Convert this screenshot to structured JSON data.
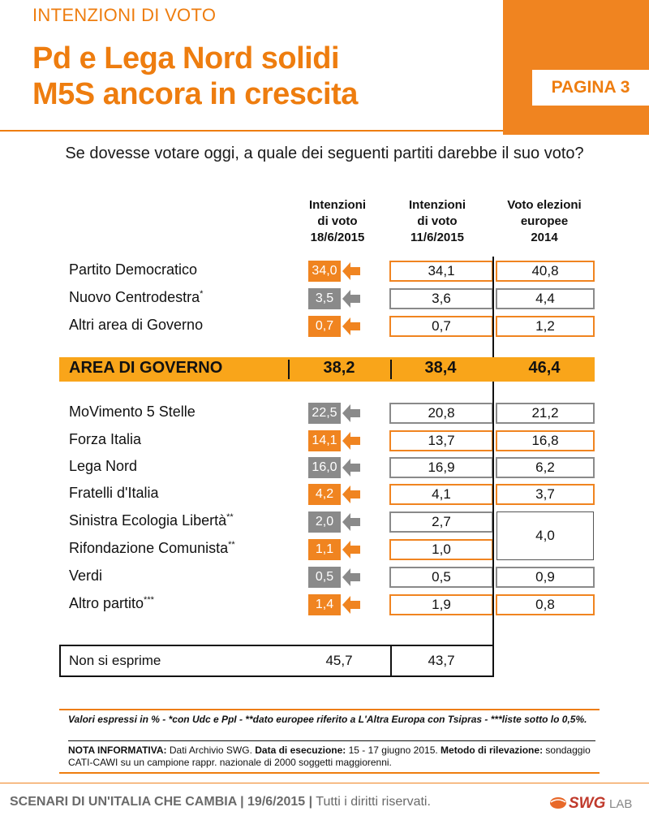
{
  "header": {
    "kicker": "INTENZIONI DI VOTO",
    "title_line1": "Pd e Lega Nord solidi",
    "title_line2": "M5S ancora in crescita",
    "page_label": "PAGINA 3",
    "accent_color": "#f08420"
  },
  "question": "Se dovesse votare oggi, a quale dei seguenti partiti darebbe il suo voto?",
  "columns": [
    {
      "line1": "Intenzioni",
      "line2": "di voto",
      "line3": "18/6/2015"
    },
    {
      "line1": "Intenzioni",
      "line2": "di voto",
      "line3": "11/6/2015"
    },
    {
      "line1": "Voto elezioni",
      "line2": "europee",
      "line3": "2014"
    }
  ],
  "rows": [
    {
      "name": "Partito Democratico",
      "mark": "",
      "current": "34,0",
      "previous": "34,1",
      "europee": "40,8",
      "color": "orange",
      "trend": "left-arrow-icon"
    },
    {
      "name": "Nuovo Centrodestra",
      "mark": "*",
      "current": "3,5",
      "previous": "3,6",
      "europee": "4,4",
      "color": "gray",
      "trend": "left-arrow-icon"
    },
    {
      "name": "Altri area di Governo",
      "mark": "",
      "current": "0,7",
      "previous": "0,7",
      "europee": "1,2",
      "color": "orange",
      "trend": "left-arrow-icon"
    },
    {
      "name": "MoVimento 5 Stelle",
      "mark": "",
      "current": "22,5",
      "previous": "20,8",
      "europee": "21,2",
      "color": "gray",
      "trend": "left-arrow-icon"
    },
    {
      "name": "Forza Italia",
      "mark": "",
      "current": "14,1",
      "previous": "13,7",
      "europee": "16,8",
      "color": "orange",
      "trend": "left-arrow-icon"
    },
    {
      "name": "Lega Nord",
      "mark": "",
      "current": "16,0",
      "previous": "16,9",
      "europee": "6,2",
      "color": "gray",
      "trend": "left-arrow-icon"
    },
    {
      "name": "Fratelli d'Italia",
      "mark": "",
      "current": "4,2",
      "previous": "4,1",
      "europee": "3,7",
      "color": "orange",
      "trend": "left-arrow-icon"
    },
    {
      "name": "Sinistra Ecologia Libertà",
      "mark": "**",
      "current": "2,0",
      "previous": "2,7",
      "europee": "4,0",
      "color": "gray",
      "trend": "left-arrow-icon"
    },
    {
      "name": "Rifondazione Comunista",
      "mark": "**",
      "current": "1,1",
      "previous": "1,0",
      "europee": "",
      "color": "orange",
      "trend": "left-arrow-icon"
    },
    {
      "name": "Verdi",
      "mark": "",
      "current": "0,5",
      "previous": "0,5",
      "europee": "0,9",
      "color": "gray",
      "trend": "left-arrow-icon"
    },
    {
      "name": "Altro partito",
      "mark": "***",
      "current": "1,4",
      "previous": "1,9",
      "europee": "0,8",
      "color": "orange",
      "trend": "left-arrow-icon"
    }
  ],
  "area_governo": {
    "label": "AREA DI GOVERNO",
    "current": "38,2",
    "previous": "38,4",
    "europee": "46,4"
  },
  "non_si_esprime": {
    "label": "Non si esprime",
    "current": "45,7",
    "previous": "43,7"
  },
  "notes": {
    "line1": "Valori espressi in % - *con Udc e PpI - **dato europee riferito a L'Altra Europa con Tsipras - ***liste sotto lo 0,5%.",
    "nota_label": "NOTA INFORMATIVA:",
    "nota_text": " Dati Archivio SWG. ",
    "data_label": "Data di esecuzione:",
    "data_text": " 15 - 17 giugno 2015. ",
    "metodo_label": "Metodo di rilevazione:",
    "metodo_text": " sondaggio CATI-CAWI su un campione rappr. nazionale di 2000 soggetti maggiorenni."
  },
  "footer": {
    "bold_text": "SCENARI DI UN'ITALIA CHE CAMBIA | 19/6/2015 |",
    "plain_text": " Tutti i diritti riservati.",
    "logo_text": "SWG",
    "logo_sub": "LAB"
  }
}
